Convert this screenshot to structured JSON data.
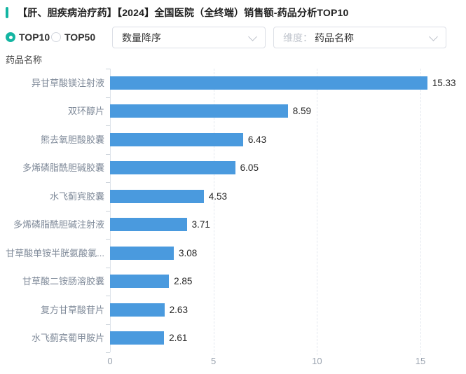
{
  "accent_color": "#13b5a2",
  "header": {
    "title": "【肝、胆疾病治疗药】【2024】全国医院（全终端）销售额-药品分析TOP10"
  },
  "controls": {
    "radios": [
      {
        "label": "TOP10",
        "selected": true
      },
      {
        "label": "TOP50",
        "selected": false
      }
    ],
    "sort_select": {
      "value": "数量降序",
      "chevron_icon": "chevron-down"
    },
    "dimension_select": {
      "prefix": "维度：",
      "value": "药品名称",
      "chevron_icon": "chevron-down"
    }
  },
  "chart_data": {
    "type": "bar",
    "orientation": "horizontal",
    "axis_title": "药品名称",
    "categories": [
      "异甘草酸镁注射液",
      "双环醇片",
      "熊去氧胆酸胶囊",
      "多烯磷脂酰胆碱胶囊",
      "水飞蓟宾胶囊",
      "多烯磷脂酰胆碱注射液",
      "甘草酸单铵半胱氨酸氯...",
      "甘草酸二铵肠溶胶囊",
      "复方甘草酸苷片",
      "水飞蓟宾葡甲胺片"
    ],
    "values": [
      15.33,
      8.59,
      6.43,
      6.05,
      4.53,
      3.71,
      3.08,
      2.85,
      2.63,
      2.61
    ],
    "value_labels": [
      "15.33",
      "8.59",
      "6.43",
      "6.05",
      "4.53",
      "3.71",
      "3.08",
      "2.85",
      "2.63",
      "2.61"
    ],
    "x_ticks": [
      0,
      5,
      10,
      15
    ],
    "xlim": [
      0,
      16.3
    ],
    "bar_color": "#4a9ade",
    "grid": true,
    "grid_style": "dashed"
  }
}
